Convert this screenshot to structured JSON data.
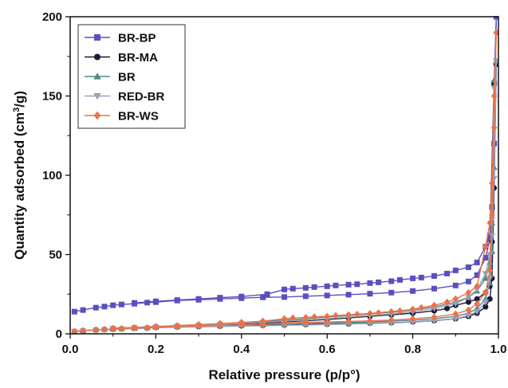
{
  "chart_data": {
    "type": "line",
    "xlabel": "Relative pressure (p/p°)",
    "ylabel": "Quantity adsorbed (cm³/g)",
    "ylabel_parts": {
      "pre": "Quantity adsorbed (cm",
      "sup": "3",
      "post": "/g)"
    },
    "xlim": [
      0.0,
      1.0
    ],
    "ylim": [
      0,
      200
    ],
    "xticks": [
      "0.0",
      "0.2",
      "0.4",
      "0.6",
      "0.8",
      "1.0"
    ],
    "yticks": [
      "0",
      "50",
      "100",
      "150",
      "200"
    ],
    "grid": false,
    "legend_position": "top-left",
    "series": [
      {
        "name": "BR-BP",
        "color": "#5a4fbf",
        "marker": "square",
        "adsorption": [
          [
            0.01,
            14
          ],
          [
            0.03,
            15
          ],
          [
            0.06,
            16.5
          ],
          [
            0.08,
            17.2
          ],
          [
            0.1,
            18
          ],
          [
            0.12,
            18.5
          ],
          [
            0.15,
            19
          ],
          [
            0.18,
            19.7
          ],
          [
            0.2,
            20
          ],
          [
            0.25,
            21
          ],
          [
            0.3,
            21.5
          ],
          [
            0.35,
            22
          ],
          [
            0.4,
            22.5
          ],
          [
            0.45,
            23
          ],
          [
            0.5,
            23.2
          ],
          [
            0.55,
            23.7
          ],
          [
            0.6,
            24.2
          ],
          [
            0.65,
            24.7
          ],
          [
            0.7,
            25.3
          ],
          [
            0.75,
            26
          ],
          [
            0.8,
            27
          ],
          [
            0.85,
            28.5
          ],
          [
            0.9,
            30.5
          ],
          [
            0.93,
            33
          ],
          [
            0.95,
            37
          ],
          [
            0.97,
            48
          ],
          [
            0.98,
            60
          ],
          [
            0.985,
            80
          ],
          [
            0.99,
            120
          ],
          [
            0.995,
            200
          ]
        ],
        "desorption": [
          [
            0.995,
            200
          ],
          [
            0.99,
            158
          ],
          [
            0.98,
            62
          ],
          [
            0.97,
            55
          ],
          [
            0.95,
            45
          ],
          [
            0.93,
            42
          ],
          [
            0.9,
            40
          ],
          [
            0.88,
            38
          ],
          [
            0.85,
            36.5
          ],
          [
            0.82,
            35.5
          ],
          [
            0.8,
            35
          ],
          [
            0.77,
            34
          ],
          [
            0.75,
            33.2
          ],
          [
            0.72,
            32.5
          ],
          [
            0.7,
            32
          ],
          [
            0.67,
            31.3
          ],
          [
            0.65,
            31
          ],
          [
            0.62,
            30.5
          ],
          [
            0.6,
            30
          ],
          [
            0.57,
            29.5
          ],
          [
            0.55,
            29
          ],
          [
            0.52,
            28.5
          ],
          [
            0.5,
            28
          ],
          [
            0.46,
            25
          ],
          [
            0.4,
            23.5
          ],
          [
            0.35,
            22.8
          ],
          [
            0.3,
            22
          ],
          [
            0.25,
            21.3
          ],
          [
            0.2,
            20.5
          ],
          [
            0.15,
            19.5
          ]
        ]
      },
      {
        "name": "BR-MA",
        "color": "#1a1a3a",
        "marker": "circle",
        "adsorption": [
          [
            0.01,
            1.5
          ],
          [
            0.03,
            2
          ],
          [
            0.06,
            2.5
          ],
          [
            0.08,
            2.8
          ],
          [
            0.1,
            3
          ],
          [
            0.12,
            3.2
          ],
          [
            0.15,
            3.5
          ],
          [
            0.18,
            3.7
          ],
          [
            0.2,
            4
          ],
          [
            0.25,
            4.3
          ],
          [
            0.3,
            4.6
          ],
          [
            0.35,
            4.8
          ],
          [
            0.4,
            5
          ],
          [
            0.45,
            5.3
          ],
          [
            0.5,
            5.5
          ],
          [
            0.55,
            5.8
          ],
          [
            0.6,
            6
          ],
          [
            0.65,
            6.3
          ],
          [
            0.7,
            6.7
          ],
          [
            0.75,
            7
          ],
          [
            0.8,
            7.5
          ],
          [
            0.85,
            8.3
          ],
          [
            0.9,
            9.5
          ],
          [
            0.93,
            11
          ],
          [
            0.95,
            13
          ],
          [
            0.97,
            17
          ],
          [
            0.98,
            22
          ],
          [
            0.985,
            35
          ],
          [
            0.99,
            92
          ],
          [
            0.995,
            170
          ]
        ],
        "desorption": [
          [
            0.995,
            170
          ],
          [
            0.99,
            158
          ],
          [
            0.985,
            58
          ],
          [
            0.98,
            30
          ],
          [
            0.97,
            26
          ],
          [
            0.95,
            22
          ],
          [
            0.93,
            20
          ],
          [
            0.9,
            18
          ],
          [
            0.88,
            16
          ],
          [
            0.85,
            14.5
          ],
          [
            0.8,
            13
          ],
          [
            0.75,
            12
          ],
          [
            0.7,
            11
          ],
          [
            0.65,
            10
          ],
          [
            0.6,
            9
          ],
          [
            0.55,
            8.3
          ],
          [
            0.5,
            7.5
          ],
          [
            0.45,
            6.8
          ],
          [
            0.4,
            6.3
          ],
          [
            0.35,
            5.8
          ],
          [
            0.3,
            5.3
          ],
          [
            0.25,
            4.8
          ],
          [
            0.2,
            4.3
          ],
          [
            0.15,
            3.8
          ],
          [
            0.1,
            3.3
          ]
        ]
      },
      {
        "name": "BR",
        "color": "#4f8a8a",
        "marker": "triangle-up",
        "adsorption": [
          [
            0.01,
            1.5
          ],
          [
            0.03,
            2
          ],
          [
            0.06,
            2.5
          ],
          [
            0.08,
            2.8
          ],
          [
            0.1,
            3
          ],
          [
            0.12,
            3.3
          ],
          [
            0.15,
            3.6
          ],
          [
            0.18,
            3.9
          ],
          [
            0.2,
            4.2
          ],
          [
            0.25,
            4.6
          ],
          [
            0.3,
            5
          ],
          [
            0.35,
            5.3
          ],
          [
            0.4,
            5.6
          ],
          [
            0.45,
            5.9
          ],
          [
            0.5,
            6.2
          ],
          [
            0.55,
            6.5
          ],
          [
            0.6,
            6.8
          ],
          [
            0.65,
            7.1
          ],
          [
            0.7,
            7.5
          ],
          [
            0.75,
            8
          ],
          [
            0.8,
            8.6
          ],
          [
            0.85,
            9.5
          ],
          [
            0.9,
            11
          ],
          [
            0.93,
            13
          ],
          [
            0.95,
            16
          ],
          [
            0.97,
            22
          ],
          [
            0.98,
            32
          ],
          [
            0.985,
            52
          ],
          [
            0.99,
            105
          ],
          [
            0.995,
            172
          ]
        ],
        "desorption": [
          [
            0.995,
            172
          ],
          [
            0.99,
            160
          ],
          [
            0.985,
            70
          ],
          [
            0.98,
            45
          ],
          [
            0.97,
            35
          ],
          [
            0.95,
            27
          ],
          [
            0.93,
            23
          ],
          [
            0.9,
            20
          ],
          [
            0.85,
            17
          ],
          [
            0.8,
            15
          ],
          [
            0.75,
            13.5
          ],
          [
            0.7,
            12.5
          ],
          [
            0.65,
            11.5
          ],
          [
            0.6,
            10.5
          ],
          [
            0.55,
            9.5
          ],
          [
            0.5,
            8.7
          ],
          [
            0.45,
            7.8
          ],
          [
            0.4,
            7
          ],
          [
            0.35,
            6.4
          ],
          [
            0.3,
            5.8
          ],
          [
            0.25,
            5.2
          ],
          [
            0.2,
            4.6
          ],
          [
            0.15,
            4
          ],
          [
            0.1,
            3.5
          ]
        ]
      },
      {
        "name": "RED-BR",
        "color": "#9aa0b8",
        "marker": "triangle-down",
        "adsorption": [
          [
            0.01,
            1.5
          ],
          [
            0.03,
            2
          ],
          [
            0.06,
            2.3
          ],
          [
            0.08,
            2.6
          ],
          [
            0.1,
            2.8
          ],
          [
            0.12,
            3
          ],
          [
            0.15,
            3.3
          ],
          [
            0.18,
            3.5
          ],
          [
            0.2,
            3.8
          ],
          [
            0.25,
            4.1
          ],
          [
            0.3,
            4.4
          ],
          [
            0.35,
            4.6
          ],
          [
            0.4,
            4.9
          ],
          [
            0.45,
            5.1
          ],
          [
            0.5,
            5.4
          ],
          [
            0.55,
            5.6
          ],
          [
            0.6,
            5.9
          ],
          [
            0.65,
            6.2
          ],
          [
            0.7,
            6.5
          ],
          [
            0.75,
            6.9
          ],
          [
            0.8,
            7.4
          ],
          [
            0.85,
            8.2
          ],
          [
            0.9,
            9.5
          ],
          [
            0.93,
            11.5
          ],
          [
            0.95,
            14
          ],
          [
            0.97,
            20
          ],
          [
            0.98,
            35
          ],
          [
            0.985,
            62
          ],
          [
            0.99,
            98
          ],
          [
            0.995,
            172
          ]
        ],
        "desorption": [
          [
            0.995,
            172
          ],
          [
            0.99,
            155
          ],
          [
            0.985,
            72
          ],
          [
            0.98,
            50
          ],
          [
            0.97,
            38
          ],
          [
            0.95,
            28
          ],
          [
            0.93,
            23
          ],
          [
            0.9,
            19
          ],
          [
            0.85,
            16
          ],
          [
            0.8,
            14
          ],
          [
            0.75,
            12.5
          ],
          [
            0.7,
            11.5
          ],
          [
            0.65,
            10.5
          ],
          [
            0.6,
            9.5
          ],
          [
            0.55,
            8.7
          ],
          [
            0.5,
            8
          ],
          [
            0.45,
            7.2
          ],
          [
            0.4,
            6.5
          ],
          [
            0.35,
            6
          ],
          [
            0.3,
            5.4
          ],
          [
            0.25,
            4.9
          ],
          [
            0.2,
            4.4
          ],
          [
            0.15,
            3.9
          ],
          [
            0.1,
            3.4
          ]
        ]
      },
      {
        "name": "BR-WS",
        "color": "#e8734a",
        "marker": "diamond",
        "adsorption": [
          [
            0.01,
            1.5
          ],
          [
            0.03,
            2
          ],
          [
            0.06,
            2.5
          ],
          [
            0.08,
            2.8
          ],
          [
            0.1,
            3
          ],
          [
            0.12,
            3.3
          ],
          [
            0.15,
            3.6
          ],
          [
            0.18,
            3.9
          ],
          [
            0.2,
            4.2
          ],
          [
            0.25,
            4.6
          ],
          [
            0.3,
            5
          ],
          [
            0.35,
            5.3
          ],
          [
            0.4,
            5.6
          ],
          [
            0.45,
            6
          ],
          [
            0.5,
            7
          ],
          [
            0.55,
            7.2
          ],
          [
            0.6,
            7.5
          ],
          [
            0.65,
            7.8
          ],
          [
            0.7,
            8.2
          ],
          [
            0.75,
            8.7
          ],
          [
            0.8,
            9.5
          ],
          [
            0.85,
            10.5
          ],
          [
            0.9,
            12.5
          ],
          [
            0.93,
            15
          ],
          [
            0.95,
            19
          ],
          [
            0.97,
            26
          ],
          [
            0.98,
            40
          ],
          [
            0.985,
            75
          ],
          [
            0.99,
            130
          ],
          [
            0.995,
            190
          ]
        ],
        "desorption": [
          [
            0.995,
            190
          ],
          [
            0.99,
            150
          ],
          [
            0.985,
            95
          ],
          [
            0.98,
            70
          ],
          [
            0.97,
            55
          ],
          [
            0.95,
            30
          ],
          [
            0.93,
            26
          ],
          [
            0.9,
            22
          ],
          [
            0.88,
            20
          ],
          [
            0.85,
            18
          ],
          [
            0.82,
            16.5
          ],
          [
            0.8,
            15.5
          ],
          [
            0.77,
            14.5
          ],
          [
            0.75,
            14
          ],
          [
            0.72,
            13.3
          ],
          [
            0.7,
            12.8
          ],
          [
            0.67,
            12.3
          ],
          [
            0.65,
            12
          ],
          [
            0.62,
            11.5
          ],
          [
            0.6,
            11
          ],
          [
            0.57,
            10.7
          ],
          [
            0.55,
            10.3
          ],
          [
            0.52,
            10
          ],
          [
            0.5,
            9.5
          ],
          [
            0.45,
            8
          ],
          [
            0.4,
            7.2
          ],
          [
            0.35,
            6.5
          ],
          [
            0.3,
            5.8
          ],
          [
            0.25,
            5.2
          ],
          [
            0.2,
            4.6
          ],
          [
            0.15,
            4
          ],
          [
            0.1,
            3.5
          ]
        ]
      }
    ]
  }
}
